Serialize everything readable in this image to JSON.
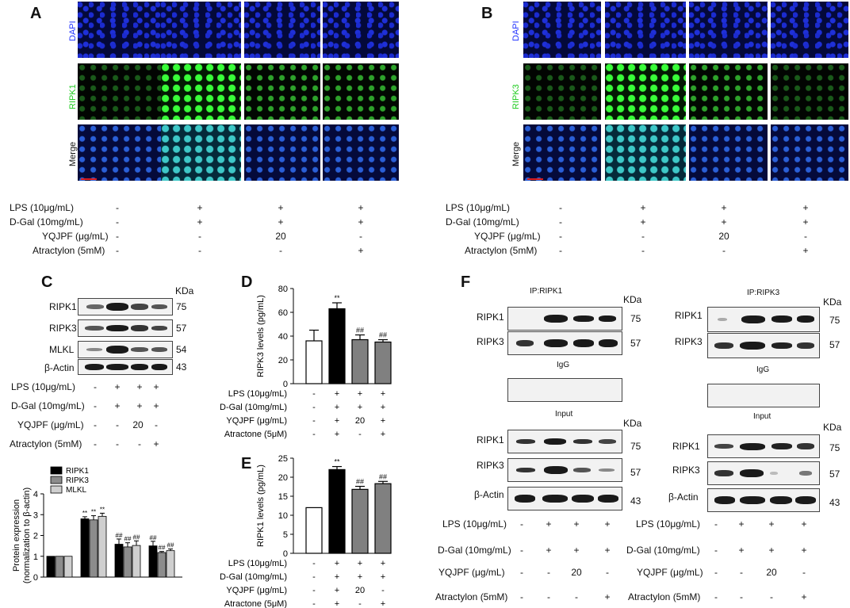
{
  "panel_a": {
    "letter": "A",
    "rows": [
      "DAPI",
      "RIPK1",
      "Merge"
    ],
    "conditions": [
      {
        "label": "LPS (10μg/mL)",
        "signs": [
          "-",
          "+",
          "+",
          "+"
        ]
      },
      {
        "label": "D-Gal (10mg/mL)",
        "signs": [
          "-",
          "+",
          "+",
          "+"
        ]
      },
      {
        "label": "YQJPF (μg/mL)",
        "signs": [
          "-",
          "-",
          "20",
          "-"
        ]
      },
      {
        "label": "Atractylon (5mM)",
        "signs": [
          "-",
          "-",
          "-",
          "+"
        ]
      }
    ]
  },
  "panel_b": {
    "letter": "B",
    "rows": [
      "DAPI",
      "RIPK3",
      "Merge"
    ],
    "conditions": [
      {
        "label": "LPS (10μg/mL)",
        "signs": [
          "-",
          "+",
          "+",
          "+"
        ]
      },
      {
        "label": "D-Gal (10mg/mL)",
        "signs": [
          "-",
          "+",
          "+",
          "+"
        ]
      },
      {
        "label": "YQJPF (μg/mL)",
        "signs": [
          "-",
          "-",
          "20",
          "-"
        ]
      },
      {
        "label": "Atractylon (5mM)",
        "signs": [
          "-",
          "-",
          "-",
          "+"
        ]
      }
    ]
  },
  "panel_c": {
    "letter": "C",
    "kda_header": "KDa",
    "blots": [
      {
        "label": "RIPK1",
        "kda": "75"
      },
      {
        "label": "RIPK3",
        "kda": "57"
      },
      {
        "label": "MLKL",
        "kda": "54"
      },
      {
        "label": "β-Actin",
        "kda": "43"
      }
    ],
    "conditions": [
      {
        "label": "LPS (10μg/mL)",
        "signs": [
          "-",
          "+",
          "+",
          "+"
        ]
      },
      {
        "label": "D-Gal (10mg/mL)",
        "signs": [
          "-",
          "+",
          "+",
          "+"
        ]
      },
      {
        "label": "YQJPF (μg/mL)",
        "signs": [
          "-",
          "-",
          "20",
          "-"
        ]
      },
      {
        "label": "Atractylon (5mM)",
        "signs": [
          "-",
          "-",
          "-",
          "+"
        ]
      }
    ]
  },
  "panel_d": {
    "letter": "D"
  },
  "panel_e": {
    "letter": "E"
  },
  "panel_f": {
    "letter": "F",
    "kda_header": "KDa",
    "left": {
      "ip_title": "IP:RIPK1",
      "igg": "IgG",
      "input": "Input",
      "ip_blots": [
        {
          "label": "RIPK1",
          "kda": "75"
        },
        {
          "label": "RIPK3",
          "kda": "57"
        }
      ],
      "input_blots": [
        {
          "label": "RIPK1",
          "kda": "75"
        },
        {
          "label": "RIPK3",
          "kda": "57"
        },
        {
          "label": "β-Actin",
          "kda": "43"
        }
      ],
      "conditions": [
        {
          "label": "LPS (10μg/mL)",
          "signs": [
            "-",
            "+",
            "+",
            "+"
          ]
        },
        {
          "label": "D-Gal (10mg/mL)",
          "signs": [
            "-",
            "+",
            "+",
            "+"
          ]
        },
        {
          "label": "YQJPF (μg/mL)",
          "signs": [
            "-",
            "-",
            "20",
            "-"
          ]
        },
        {
          "label": "Atractylon (5mM)",
          "signs": [
            "-",
            "-",
            "-",
            "+"
          ]
        }
      ]
    },
    "right": {
      "ip_title": "IP:RIPK3",
      "igg": "IgG",
      "input": "Input",
      "ip_blots": [
        {
          "label": "RIPK1",
          "kda": "75"
        },
        {
          "label": "RIPK3",
          "kda": "57"
        }
      ],
      "input_blots": [
        {
          "label": "RIPK1",
          "kda": "75"
        },
        {
          "label": "RIPK3",
          "kda": "57"
        },
        {
          "label": "β-Actin",
          "kda": "43"
        }
      ],
      "conditions": [
        {
          "label": "LPS (10μg/mL)",
          "signs": [
            "-",
            "+",
            "+",
            "+"
          ]
        },
        {
          "label": "D-Gal (10mg/mL)",
          "signs": [
            "-",
            "+",
            "+",
            "+"
          ]
        },
        {
          "label": "YQJPF (μg/mL)",
          "signs": [
            "-",
            "-",
            "20",
            "-"
          ]
        },
        {
          "label": "Atractylon (5mM)",
          "signs": [
            "-",
            "-",
            "-",
            "+"
          ]
        }
      ]
    }
  },
  "chart_data": [
    {
      "type": "bar",
      "panel": "C",
      "ylabel": "Protein expression\n(normalization to β-actin)",
      "ylim": [
        0,
        4
      ],
      "yticks": [
        "0",
        "1",
        "2",
        "3",
        "4"
      ],
      "legend_position": "top",
      "series": [
        {
          "name": "RIPK1",
          "color": "#000000",
          "values": [
            1.0,
            2.8,
            1.58,
            1.5
          ],
          "errors": [
            0,
            0.1,
            0.25,
            0.22
          ],
          "marks": [
            "",
            "**",
            "##",
            "##"
          ]
        },
        {
          "name": "RIPK3",
          "color": "#8c8c8c",
          "values": [
            1.0,
            2.75,
            1.45,
            1.18
          ],
          "errors": [
            0,
            0.2,
            0.2,
            0.05
          ],
          "marks": [
            "",
            "**",
            "##",
            "##"
          ]
        },
        {
          "name": "MLKL",
          "color": "#cfcfcf",
          "values": [
            1.0,
            2.92,
            1.52,
            1.27
          ],
          "errors": [
            0,
            0.15,
            0.22,
            0.08
          ],
          "marks": [
            "",
            "**",
            "##",
            "##"
          ]
        }
      ]
    },
    {
      "type": "bar",
      "panel": "D",
      "ylabel": "RIPK3 levels (pg/mL)",
      "ylim": [
        0,
        80
      ],
      "yticks": [
        "0",
        "20",
        "40",
        "60",
        "80"
      ],
      "colors": [
        "#ffffff",
        "#000000",
        "#808080",
        "#808080"
      ],
      "values": [
        36,
        63,
        37,
        35
      ],
      "errors": [
        9,
        5,
        4,
        2
      ],
      "marks": [
        "",
        "**",
        "##",
        "##"
      ],
      "conditions": [
        {
          "label": "LPS (10μg/mL)",
          "signs": [
            "-",
            "+",
            "+",
            "+"
          ]
        },
        {
          "label": "D-Gal (10mg/mL)",
          "signs": [
            "-",
            "+",
            "+",
            "+"
          ]
        },
        {
          "label": "YQJPF (μg/mL)",
          "signs": [
            "-",
            "+",
            "20",
            "+"
          ]
        },
        {
          "label": "Atractone (5μM)",
          "signs": [
            "-",
            "+",
            "-",
            "+"
          ]
        }
      ]
    },
    {
      "type": "bar",
      "panel": "E",
      "ylabel": "RIPK1 levels (pg/mL)",
      "ylim": [
        0,
        25
      ],
      "yticks": [
        "0",
        "5",
        "10",
        "15",
        "20",
        "25"
      ],
      "colors": [
        "#ffffff",
        "#000000",
        "#808080",
        "#808080"
      ],
      "values": [
        12,
        22,
        16.8,
        18.3
      ],
      "errors": [
        0,
        0.8,
        0.8,
        0.6
      ],
      "marks": [
        "",
        "**",
        "##",
        "##"
      ],
      "conditions": [
        {
          "label": "LPS (10μg/mL)",
          "signs": [
            "-",
            "+",
            "+",
            "+"
          ]
        },
        {
          "label": "D-Gal (10mg/mL)",
          "signs": [
            "-",
            "+",
            "+",
            "+"
          ]
        },
        {
          "label": "YQJPF (μg/mL)",
          "signs": [
            "-",
            "+",
            "20",
            "-"
          ]
        },
        {
          "label": "Atractone (5μM)",
          "signs": [
            "-",
            "+",
            "-",
            "+"
          ]
        }
      ]
    }
  ]
}
